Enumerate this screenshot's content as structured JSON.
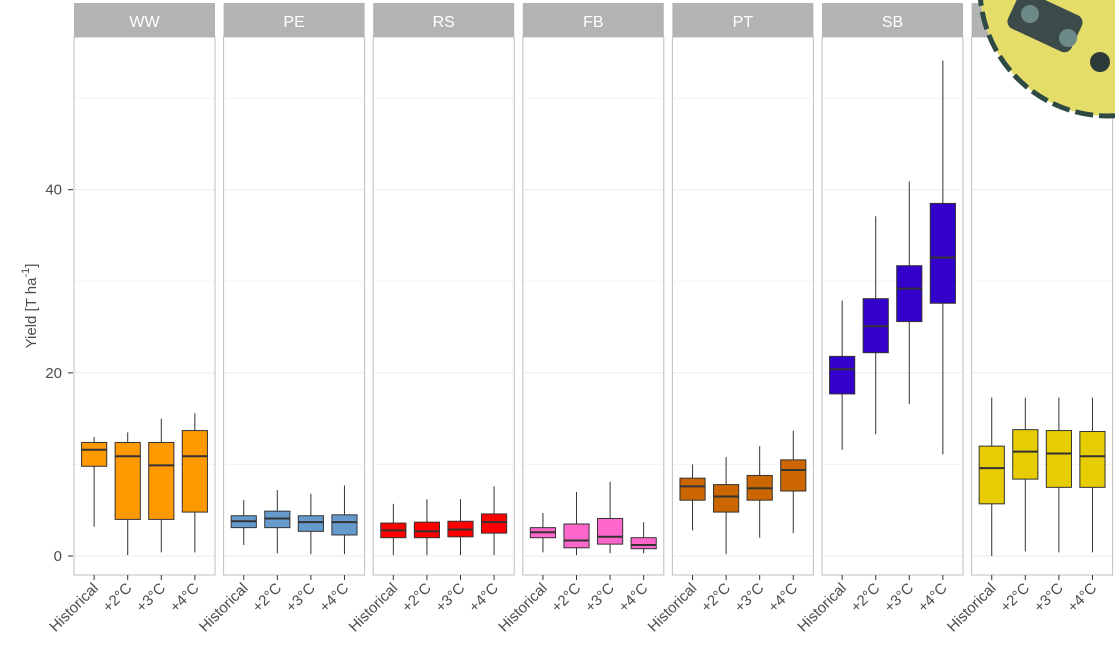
{
  "chart_data": {
    "type": "box",
    "y_label": {
      "text": "Yield [T ha",
      "superscript": "-1",
      "suffix": "]"
    },
    "categories": [
      "Historical",
      "+2°C",
      "+3°C",
      "+4°C"
    ],
    "ylim": [
      -2.07,
      56.67
    ],
    "yticks": [
      0,
      20,
      40
    ],
    "minor_yticks": [
      10,
      30,
      50
    ],
    "grid": true,
    "panels": [
      {
        "name": "WW",
        "color": "#ff9900",
        "boxes": [
          {
            "low": 3.2,
            "q1": 9.8,
            "median": 11.6,
            "q3": 12.4,
            "high": 13.0
          },
          {
            "low": 0.1,
            "q1": 4.0,
            "median": 10.9,
            "q3": 12.4,
            "high": 13.5
          },
          {
            "low": 0.4,
            "q1": 4.0,
            "median": 9.9,
            "q3": 12.4,
            "high": 15.0
          },
          {
            "low": 0.4,
            "q1": 4.8,
            "median": 10.9,
            "q3": 13.7,
            "high": 15.6
          }
        ]
      },
      {
        "name": "PE",
        "color": "#6699cc",
        "boxes": [
          {
            "low": 1.2,
            "q1": 3.1,
            "median": 3.8,
            "q3": 4.4,
            "high": 6.1
          },
          {
            "low": 0.3,
            "q1": 3.1,
            "median": 4.1,
            "q3": 4.9,
            "high": 7.2
          },
          {
            "low": 0.2,
            "q1": 2.7,
            "median": 3.7,
            "q3": 4.4,
            "high": 6.8
          },
          {
            "low": 0.2,
            "q1": 2.3,
            "median": 3.7,
            "q3": 4.5,
            "high": 7.7
          }
        ]
      },
      {
        "name": "RS",
        "color": "#ff0000",
        "boxes": [
          {
            "low": 0.1,
            "q1": 2.0,
            "median": 2.8,
            "q3": 3.6,
            "high": 5.7
          },
          {
            "low": 0.1,
            "q1": 2.0,
            "median": 2.7,
            "q3": 3.7,
            "high": 6.2
          },
          {
            "low": 0.1,
            "q1": 2.1,
            "median": 2.9,
            "q3": 3.8,
            "high": 6.2
          },
          {
            "low": 0.1,
            "q1": 2.5,
            "median": 3.7,
            "q3": 4.6,
            "high": 7.6
          }
        ]
      },
      {
        "name": "FB",
        "color": "#ff66cc",
        "boxes": [
          {
            "low": 0.4,
            "q1": 2.0,
            "median": 2.6,
            "q3": 3.1,
            "high": 4.7
          },
          {
            "low": 0.1,
            "q1": 0.9,
            "median": 1.7,
            "q3": 3.5,
            "high": 7.0
          },
          {
            "low": 0.3,
            "q1": 1.3,
            "median": 2.1,
            "q3": 4.1,
            "high": 8.1
          },
          {
            "low": 0.3,
            "q1": 0.8,
            "median": 1.2,
            "q3": 2.0,
            "high": 3.7
          }
        ]
      },
      {
        "name": "PT",
        "color": "#cc6600",
        "boxes": [
          {
            "low": 2.8,
            "q1": 6.1,
            "median": 7.6,
            "q3": 8.5,
            "high": 10.0
          },
          {
            "low": 0.2,
            "q1": 4.8,
            "median": 6.5,
            "q3": 7.8,
            "high": 10.8
          },
          {
            "low": 2.0,
            "q1": 6.1,
            "median": 7.4,
            "q3": 8.8,
            "high": 12.0
          },
          {
            "low": 2.5,
            "q1": 7.1,
            "median": 9.4,
            "q3": 10.5,
            "high": 13.7
          }
        ]
      },
      {
        "name": "SB",
        "color": "#3300cc",
        "boxes": [
          {
            "low": 11.6,
            "q1": 17.7,
            "median": 20.4,
            "q3": 21.8,
            "high": 27.9
          },
          {
            "low": 13.3,
            "q1": 22.2,
            "median": 25.1,
            "q3": 28.1,
            "high": 37.1
          },
          {
            "low": 16.6,
            "q1": 25.6,
            "median": 29.2,
            "q3": 31.7,
            "high": 40.9
          },
          {
            "low": 11.1,
            "q1": 27.6,
            "median": 32.6,
            "q3": 38.5,
            "high": 54.1
          }
        ]
      },
      {
        "name": null,
        "color": "#e6cc00",
        "boxes": [
          {
            "low": 0.0,
            "q1": 5.7,
            "median": 9.6,
            "q3": 12.0,
            "high": 17.3
          },
          {
            "low": 0.5,
            "q1": 8.4,
            "median": 11.4,
            "q3": 13.8,
            "high": 17.3
          },
          {
            "low": 0.4,
            "q1": 7.5,
            "median": 11.2,
            "q3": 13.7,
            "high": 17.3
          },
          {
            "low": 0.4,
            "q1": 7.5,
            "median": 10.9,
            "q3": 13.6,
            "high": 17.3
          }
        ]
      }
    ]
  }
}
